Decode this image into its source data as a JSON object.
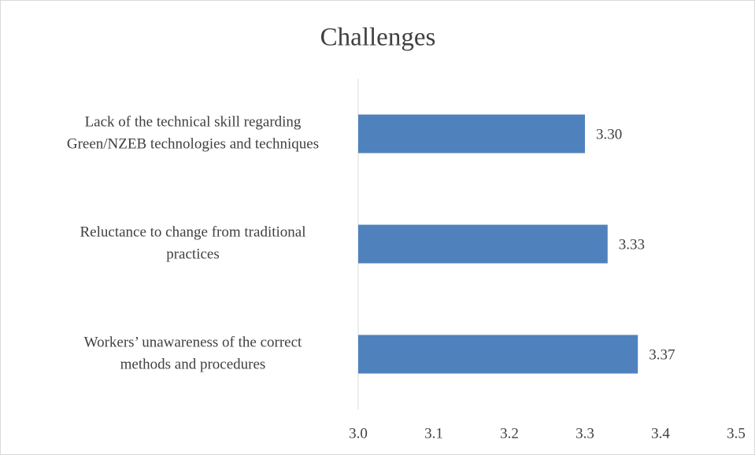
{
  "chart_data": {
    "type": "bar",
    "orientation": "horizontal",
    "title": "Challenges",
    "categories": [
      [
        "Lack of the technical skill regarding",
        "Green/NZEB technologies and techniques"
      ],
      [
        "Reluctance to change from traditional",
        "practices"
      ],
      [
        "Workers’ unawareness of the correct",
        "methods and procedures"
      ]
    ],
    "values": [
      3.3,
      3.33,
      3.37
    ],
    "value_labels": [
      "3.30",
      "3.33",
      "3.37"
    ],
    "color": "#4f81bd",
    "xlim": [
      3,
      3.5
    ],
    "xticks": [
      {
        "value": 3,
        "label": "3.0"
      },
      3.1,
      3.2,
      3.3,
      3.4,
      3.5
    ],
    "grid": false
  }
}
